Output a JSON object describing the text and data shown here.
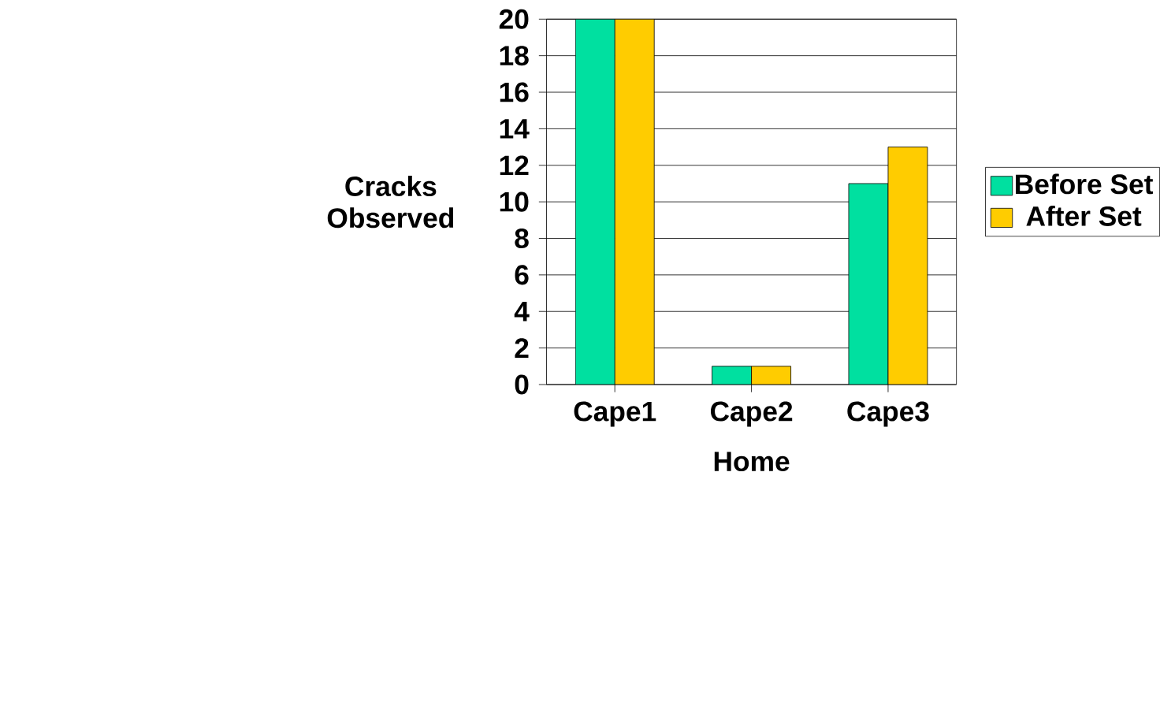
{
  "chart_data": {
    "type": "bar",
    "xlabel": "Home",
    "ylabel": "Cracks Observed",
    "categories": [
      "Cape1",
      "Cape2",
      "Cape3"
    ],
    "series": [
      {
        "name": "Before Set",
        "color": "#00e0a0",
        "values": [
          20,
          1,
          11
        ]
      },
      {
        "name": "After Set",
        "color": "#ffcc00",
        "values": [
          20,
          1,
          13
        ]
      }
    ],
    "ylim": [
      0,
      20
    ],
    "yticks": [
      0,
      2,
      4,
      6,
      8,
      10,
      12,
      14,
      16,
      18,
      20
    ],
    "grid": "y",
    "legend": "right"
  }
}
